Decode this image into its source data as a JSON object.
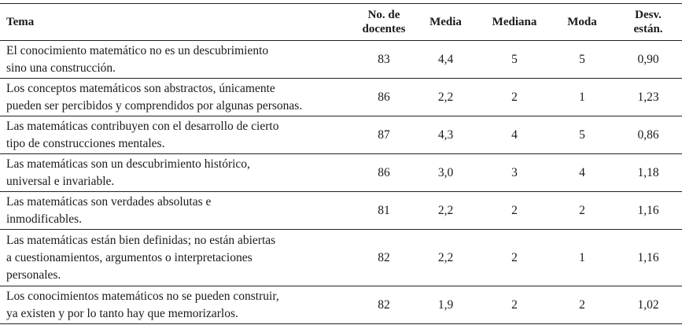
{
  "table": {
    "headers": {
      "tema": "Tema",
      "n_line1": "No. de",
      "n_line2": "docentes",
      "media": "Media",
      "mediana": "Mediana",
      "moda": "Moda",
      "desv_line1": "Desv.",
      "desv_line2": "están."
    },
    "rows": [
      {
        "tema_l1": "El conocimiento matemático no es un descubrimiento",
        "tema_l2": "sino una construcción.",
        "tema_l3": "",
        "n": "83",
        "media": "4,4",
        "mediana": "5",
        "moda": "5",
        "desv": "0,90"
      },
      {
        "tema_l1": "Los conceptos matemáticos son abstractos, únicamente",
        "tema_l2": "pueden ser percibidos y comprendidos por algunas personas.",
        "tema_l3": "",
        "n": "86",
        "media": "2,2",
        "mediana": "2",
        "moda": "1",
        "desv": "1,23"
      },
      {
        "tema_l1": "Las matemáticas contribuyen con el desarrollo de cierto",
        "tema_l2": "tipo de construcciones mentales.",
        "tema_l3": "",
        "n": "87",
        "media": "4,3",
        "mediana": "4",
        "moda": "5",
        "desv": "0,86"
      },
      {
        "tema_l1": "Las matemáticas son un descubrimiento histórico,",
        "tema_l2": "universal e invariable.",
        "tema_l3": "",
        "n": "86",
        "media": "3,0",
        "mediana": "3",
        "moda": "4",
        "desv": "1,18"
      },
      {
        "tema_l1": "Las matemáticas son verdades absolutas e",
        "tema_l2": "inmodificables.",
        "tema_l3": "",
        "n": "81",
        "media": "2,2",
        "mediana": "2",
        "moda": "2",
        "desv": "1,16"
      },
      {
        "tema_l1": "Las matemáticas están bien definidas; no están abiertas",
        "tema_l2": "a cuestionamientos, argumentos o interpretaciones",
        "tema_l3": "personales.",
        "n": "82",
        "media": "2,2",
        "mediana": "2",
        "moda": "1",
        "desv": "1,16"
      },
      {
        "tema_l1": "Los conocimientos matemáticos no se pueden construir,",
        "tema_l2": "ya existen y por lo tanto hay que memorizarlos.",
        "tema_l3": "",
        "n": "82",
        "media": "1,9",
        "mediana": "2",
        "moda": "2",
        "desv": "1,02"
      }
    ]
  }
}
